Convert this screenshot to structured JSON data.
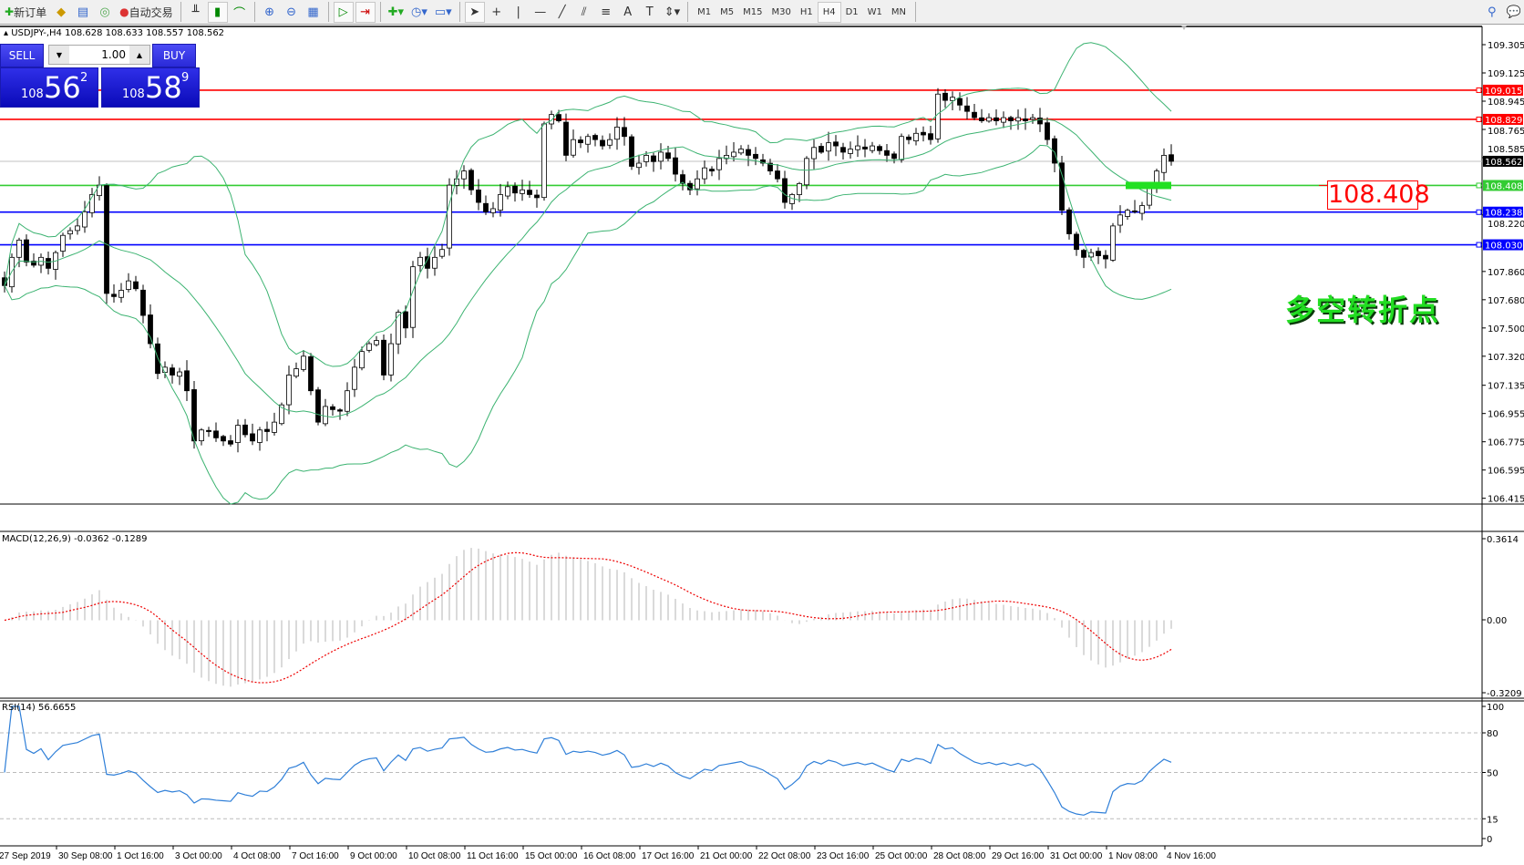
{
  "toolbar": {
    "new_order": "新订单",
    "auto_trading": "自动交易",
    "timeframes": [
      "M1",
      "M5",
      "M15",
      "M30",
      "H1",
      "H4",
      "D1",
      "W1",
      "MN"
    ],
    "active_timeframe": "H4"
  },
  "chart": {
    "header": "USDJPY-,H4  108.628 108.633 108.557 108.562",
    "trade_panel": {
      "sell_label": "SELL",
      "buy_label": "BUY",
      "lots": "1.00",
      "sell_price": {
        "big": "108",
        "main": "56",
        "pip": "2"
      },
      "buy_price": {
        "big": "108",
        "main": "58",
        "pip": "9"
      }
    },
    "price_axis": [
      "109.305",
      "109.125",
      "108.945",
      "108.765",
      "108.585",
      "108.220",
      "107.860",
      "107.680",
      "107.500",
      "107.320",
      "107.135",
      "106.955",
      "106.775",
      "106.595",
      "106.415"
    ],
    "levels": [
      {
        "price": "109.015",
        "color": "#ff0000"
      },
      {
        "price": "108.829",
        "color": "#ff0000"
      },
      {
        "price": "108.562",
        "color": "#000000",
        "kind": "bid"
      },
      {
        "price": "108.408",
        "color": "#33cc33"
      },
      {
        "price": "108.238",
        "color": "#0000ff"
      },
      {
        "price": "108.030",
        "color": "#0000ff"
      }
    ],
    "annotation_price": "108.408",
    "annotation_text": "多空转折点",
    "time_axis": [
      "27 Sep 2019",
      "30 Sep 08:00",
      "1 Oct 16:00",
      "3 Oct 00:00",
      "4 Oct 08:00",
      "7 Oct 16:00",
      "9 Oct 00:00",
      "10 Oct 08:00",
      "11 Oct 16:00",
      "15 Oct 00:00",
      "16 Oct 08:00",
      "17 Oct 16:00",
      "21 Oct 00:00",
      "22 Oct 08:00",
      "23 Oct 16:00",
      "25 Oct 00:00",
      "28 Oct 08:00",
      "29 Oct 16:00",
      "31 Oct 00:00",
      "1 Nov 08:00",
      "4 Nov 16:00"
    ],
    "macd": {
      "label": "MACD(12,26,9) -0.0362 -0.1289",
      "axis": [
        "0.3614",
        "0.00",
        "-0.3209"
      ]
    },
    "rsi": {
      "label": "RSI(14) 56.6655",
      "axis": [
        "100",
        "80",
        "50",
        "15",
        "0"
      ],
      "levels": [
        80,
        50,
        15
      ]
    }
  },
  "chart_data": {
    "type": "candlestick",
    "symbol": "USDJPY-",
    "timeframe": "H4",
    "ylim": [
      106.415,
      109.305
    ],
    "closes": [
      107.77,
      107.95,
      108.06,
      107.92,
      107.9,
      107.95,
      107.88,
      107.98,
      108.09,
      108.12,
      108.15,
      108.24,
      108.35,
      108.41,
      107.72,
      107.7,
      107.74,
      107.8,
      107.75,
      107.58,
      107.4,
      107.21,
      107.25,
      107.2,
      107.22,
      107.1,
      106.78,
      106.85,
      106.84,
      106.8,
      106.78,
      106.76,
      106.88,
      106.82,
      106.78,
      106.85,
      106.84,
      106.9,
      107.01,
      107.2,
      107.24,
      107.32,
      107.1,
      106.9,
      107.0,
      106.98,
      106.97,
      107.1,
      107.25,
      107.35,
      107.4,
      107.42,
      107.2,
      107.4,
      107.6,
      107.5,
      107.89,
      107.95,
      107.88,
      107.95,
      108.0,
      108.41,
      108.45,
      108.5,
      108.38,
      108.3,
      108.24,
      108.26,
      108.35,
      108.4,
      108.36,
      108.38,
      108.35,
      108.33,
      108.8,
      108.86,
      108.82,
      108.6,
      108.7,
      108.68,
      108.72,
      108.7,
      108.66,
      108.7,
      108.78,
      108.72,
      108.53,
      108.55,
      108.6,
      108.56,
      108.62,
      108.58,
      108.48,
      108.42,
      108.38,
      108.45,
      108.52,
      108.5,
      108.58,
      108.6,
      108.62,
      108.64,
      108.6,
      108.58,
      108.55,
      108.5,
      108.45,
      108.3,
      108.35,
      108.42,
      108.58,
      108.65,
      108.62,
      108.68,
      108.66,
      108.62,
      108.64,
      108.66,
      108.64,
      108.66,
      108.63,
      108.6,
      108.58,
      108.72,
      108.7,
      108.74,
      108.73,
      108.7,
      108.99,
      108.95,
      108.97,
      108.92,
      108.88,
      108.84,
      108.82,
      108.84,
      108.82,
      108.84,
      108.82,
      108.84,
      108.82,
      108.84,
      108.8,
      108.7,
      108.55,
      108.25,
      108.1,
      108.0,
      107.95,
      107.98,
      107.96,
      107.94,
      108.15,
      108.22,
      108.25,
      108.24,
      108.28,
      108.4,
      108.5,
      108.6,
      108.562
    ],
    "indicators": [
      "Bollinger Bands",
      "MACD(12,26,9)",
      "RSI(14)"
    ]
  }
}
